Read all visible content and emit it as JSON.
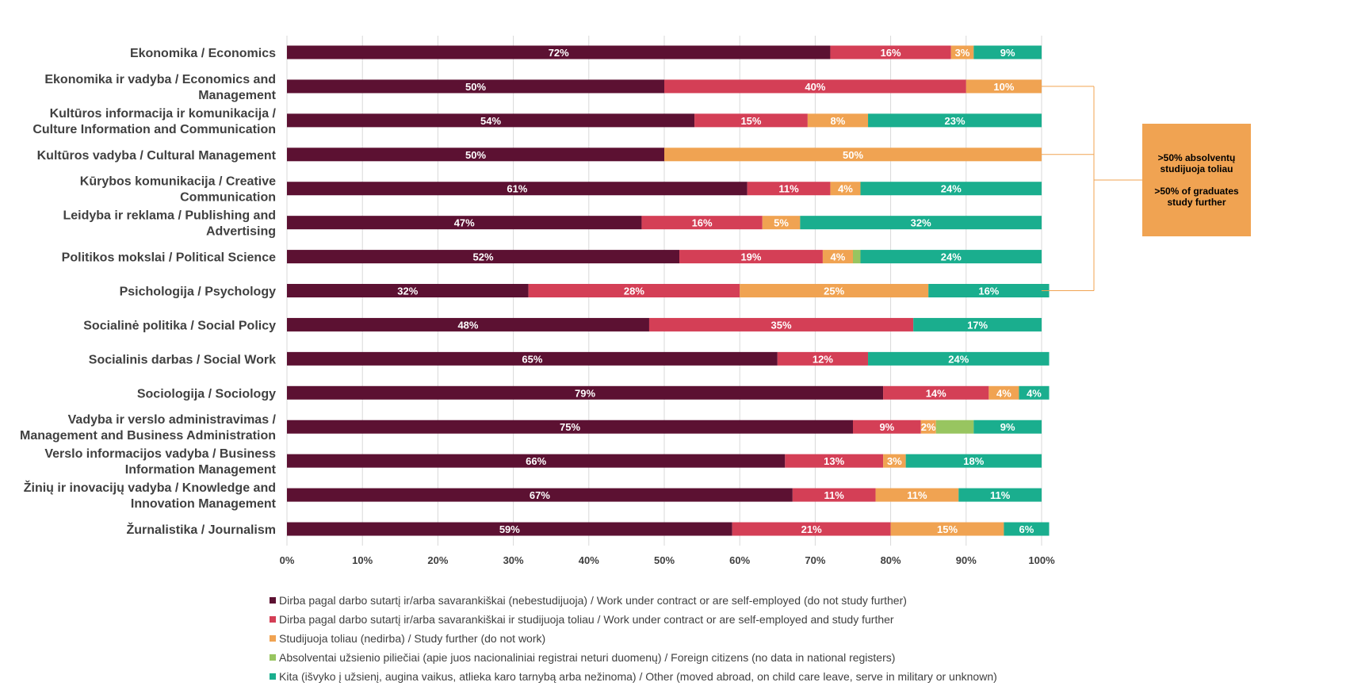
{
  "chart_data": {
    "type": "bar",
    "orientation": "horizontal",
    "stacked": "percent",
    "categories": [
      [
        "Ekonomika / Economics"
      ],
      [
        "Ekonomika ir vadyba / Economics and",
        "Management"
      ],
      [
        "Kultūros informacija ir komunikacija /",
        "Culture Information and Communication"
      ],
      [
        "Kultūros vadyba / Cultural Management"
      ],
      [
        "Kūrybos komunikacija / Creative",
        "Communication"
      ],
      [
        "Leidyba ir reklama / Publishing and",
        "Advertising"
      ],
      [
        "Politikos mokslai / Political Science"
      ],
      [
        "Psichologija / Psychology"
      ],
      [
        "Socialinė politika / Social Policy"
      ],
      [
        "Socialinis darbas / Social Work"
      ],
      [
        "Sociologija / Sociology"
      ],
      [
        "Vadyba ir verslo administravimas /",
        "Management and Business Administration"
      ],
      [
        "Verslo informacijos vadyba / Business",
        "Information Management"
      ],
      [
        "Žinių ir inovacijų vadyba / Knowledge and",
        "Innovation Management"
      ],
      [
        "Žurnalistika / Journalism"
      ]
    ],
    "series": [
      {
        "name": "Dirba pagal darbo sutartį ir/arba savarankiškai (nebestudijuoja) / Work under contract or are self-employed (do not study further)",
        "color": "#5C1132",
        "values": [
          72,
          50,
          54,
          50,
          61,
          47,
          52,
          32,
          48,
          65,
          79,
          75,
          66,
          67,
          59
        ]
      },
      {
        "name": "Dirba pagal darbo sutartį ir/arba savarankiškai  ir studijuoja toliau / Work under contract or are self-employed and study further",
        "color": "#D43F56",
        "values": [
          16,
          40,
          15,
          0,
          11,
          16,
          19,
          28,
          35,
          12,
          14,
          9,
          13,
          11,
          21
        ]
      },
      {
        "name": "Studijuoja toliau (nedirba) / Study further (do not work)",
        "color": "#F0A352",
        "values": [
          3,
          10,
          8,
          50,
          4,
          5,
          4,
          25,
          0,
          0,
          4,
          2,
          3,
          11,
          15
        ]
      },
      {
        "name": "Absolventai užsienio piliečiai (apie juos nacionaliniai registrai neturi duomenų) / Foreign citizens (no data in national registers)",
        "color": "#98C560",
        "values": [
          0,
          0,
          0,
          0,
          0,
          0,
          1,
          0,
          0,
          0,
          0,
          5,
          0,
          0,
          0
        ]
      },
      {
        "name": "Kita (išvyko į užsienį, augina vaikus, atlieka karo tarnybą arba nežinoma) / Other (moved abroad, on child care leave, serve in military or unknown)",
        "color": "#1AAE8E",
        "values": [
          9,
          0,
          23,
          0,
          24,
          32,
          24,
          16,
          17,
          24,
          4,
          9,
          18,
          11,
          6
        ]
      }
    ],
    "data_labels": [
      [
        "72%",
        "16%",
        "3%",
        "",
        "9%"
      ],
      [
        "50%",
        "40%",
        "10%",
        "",
        ""
      ],
      [
        "54%",
        "15%",
        "8%",
        "",
        "23%"
      ],
      [
        "50%",
        "",
        "50%",
        "",
        ""
      ],
      [
        "61%",
        "11%",
        "4%",
        "",
        "24%"
      ],
      [
        "47%",
        "16%",
        "5%",
        "",
        "32%"
      ],
      [
        "52%",
        "19%",
        "4%",
        "",
        "24%"
      ],
      [
        "32%",
        "28%",
        "25%",
        "",
        "16%"
      ],
      [
        "48%",
        "35%",
        "",
        "",
        "17%"
      ],
      [
        "65%",
        "12%",
        "",
        "",
        "24%"
      ],
      [
        "79%",
        "14%",
        "4%",
        "",
        "4%"
      ],
      [
        "75%",
        "9%",
        "2%",
        "",
        "9%"
      ],
      [
        "66%",
        "13%",
        "3%",
        "",
        "18%"
      ],
      [
        "67%",
        "11%",
        "11%",
        "",
        "11%"
      ],
      [
        "59%",
        "21%",
        "15%",
        "",
        "6%"
      ]
    ],
    "xlim": [
      0,
      100
    ],
    "x_ticks": [
      "0%",
      "10%",
      "20%",
      "30%",
      "40%",
      "50%",
      "60%",
      "70%",
      "80%",
      "90%",
      "100%"
    ],
    "grid": true,
    "legend_position": "bottom",
    "highlighted_rows": [
      1,
      3,
      7
    ],
    "bracket_color": "#F0A352"
  },
  "callout": {
    "line1": ">50% absolventų",
    "line2": "studijuoja toliau",
    "line3": ">50% of graduates",
    "line4": "study further",
    "color": "#F0A352"
  }
}
